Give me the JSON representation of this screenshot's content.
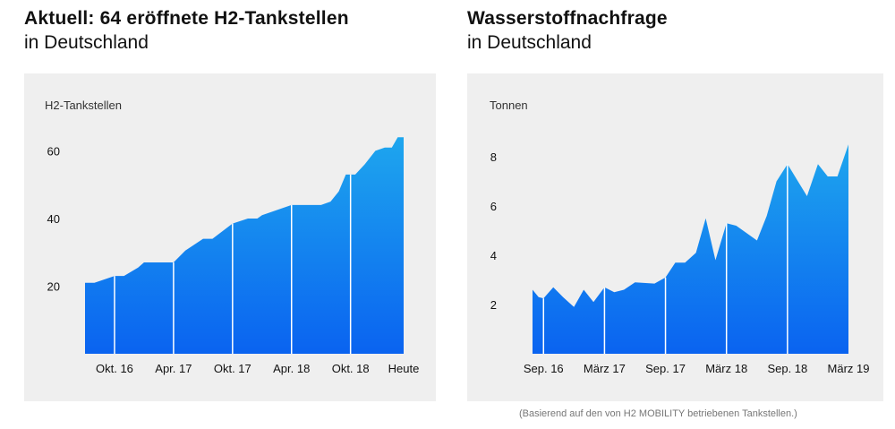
{
  "left": {
    "title": "Aktuell: 64 eröffnete H2-Tankstellen",
    "subtitle": "in Deutschland"
  },
  "right": {
    "title": "Wasserstoffnachfrage",
    "subtitle": "in Deutschland"
  },
  "footnote": "(Basierend auf den von H2 MOBILITY betriebenen Tankstellen.)",
  "colors": {
    "gradient_top": "#1ea6ee",
    "gradient_bottom": "#0a63f0",
    "panel_bg": "#efefef"
  },
  "chart_data": [
    {
      "type": "area",
      "title": "Aktuell: 64 eröffnete H2-Tankstellen",
      "subtitle": "in Deutschland",
      "ylabel": "H2-Tankstellen",
      "ylim": [
        0,
        67
      ],
      "yticks": [
        20,
        40,
        60
      ],
      "xticks": [
        {
          "label": "Okt. 16",
          "x": 2016.75
        },
        {
          "label": "Apr. 17",
          "x": 2017.25
        },
        {
          "label": "Okt. 17",
          "x": 2017.75
        },
        {
          "label": "Apr. 18",
          "x": 2018.25
        },
        {
          "label": "Okt. 18",
          "x": 2018.75
        },
        {
          "label": "Heute",
          "x": 2019.2
        }
      ],
      "xlim": [
        2016.5,
        2019.2
      ],
      "grid": false,
      "points": [
        [
          2016.5,
          21
        ],
        [
          2016.58,
          21
        ],
        [
          2016.75,
          23
        ],
        [
          2016.83,
          23
        ],
        [
          2016.95,
          25.5
        ],
        [
          2017.0,
          27
        ],
        [
          2017.25,
          27
        ],
        [
          2017.35,
          30.5
        ],
        [
          2017.5,
          34
        ],
        [
          2017.58,
          34
        ],
        [
          2017.75,
          38.5
        ],
        [
          2017.88,
          40
        ],
        [
          2017.96,
          40
        ],
        [
          2018.0,
          41
        ],
        [
          2018.25,
          44
        ],
        [
          2018.5,
          44
        ],
        [
          2018.58,
          45
        ],
        [
          2018.65,
          48
        ],
        [
          2018.71,
          53
        ],
        [
          2018.79,
          53
        ],
        [
          2018.87,
          56
        ],
        [
          2018.96,
          60
        ],
        [
          2019.04,
          61
        ],
        [
          2019.1,
          61
        ],
        [
          2019.15,
          64
        ],
        [
          2019.2,
          64
        ]
      ],
      "vlines": [
        2016.75,
        2017.25,
        2017.75,
        2018.25,
        2018.75
      ]
    },
    {
      "type": "area",
      "title": "Wasserstoffnachfrage",
      "subtitle": "in Deutschland",
      "ylabel": "Tonnen",
      "ylim": [
        0,
        9.2
      ],
      "yticks": [
        2,
        4,
        6,
        8
      ],
      "xticks": [
        {
          "label": "Sep. 16",
          "x": 2016.67
        },
        {
          "label": "März 17",
          "x": 2017.17
        },
        {
          "label": "Sep. 17",
          "x": 2017.67
        },
        {
          "label": "März 18",
          "x": 2018.17
        },
        {
          "label": "Sep. 18",
          "x": 2018.67
        },
        {
          "label": "März 19",
          "x": 2019.17
        }
      ],
      "xlim": [
        2016.58,
        2019.17
      ],
      "grid": false,
      "points": [
        [
          2016.58,
          2.6
        ],
        [
          2016.63,
          2.3
        ],
        [
          2016.67,
          2.25
        ],
        [
          2016.75,
          2.7
        ],
        [
          2016.83,
          2.3
        ],
        [
          2016.92,
          1.9
        ],
        [
          2017.0,
          2.6
        ],
        [
          2017.08,
          2.1
        ],
        [
          2017.17,
          2.7
        ],
        [
          2017.25,
          2.5
        ],
        [
          2017.33,
          2.6
        ],
        [
          2017.42,
          2.9
        ],
        [
          2017.58,
          2.85
        ],
        [
          2017.67,
          3.1
        ],
        [
          2017.75,
          3.7
        ],
        [
          2017.83,
          3.7
        ],
        [
          2017.92,
          4.1
        ],
        [
          2018.0,
          5.5
        ],
        [
          2018.08,
          3.8
        ],
        [
          2018.17,
          5.3
        ],
        [
          2018.25,
          5.2
        ],
        [
          2018.42,
          4.6
        ],
        [
          2018.5,
          5.6
        ],
        [
          2018.58,
          7.0
        ],
        [
          2018.67,
          7.7
        ],
        [
          2018.83,
          6.4
        ],
        [
          2018.92,
          7.7
        ],
        [
          2019.0,
          7.2
        ],
        [
          2019.08,
          7.2
        ],
        [
          2019.17,
          8.5
        ]
      ],
      "vlines": [
        2016.67,
        2017.17,
        2017.67,
        2018.17,
        2018.67
      ]
    }
  ]
}
